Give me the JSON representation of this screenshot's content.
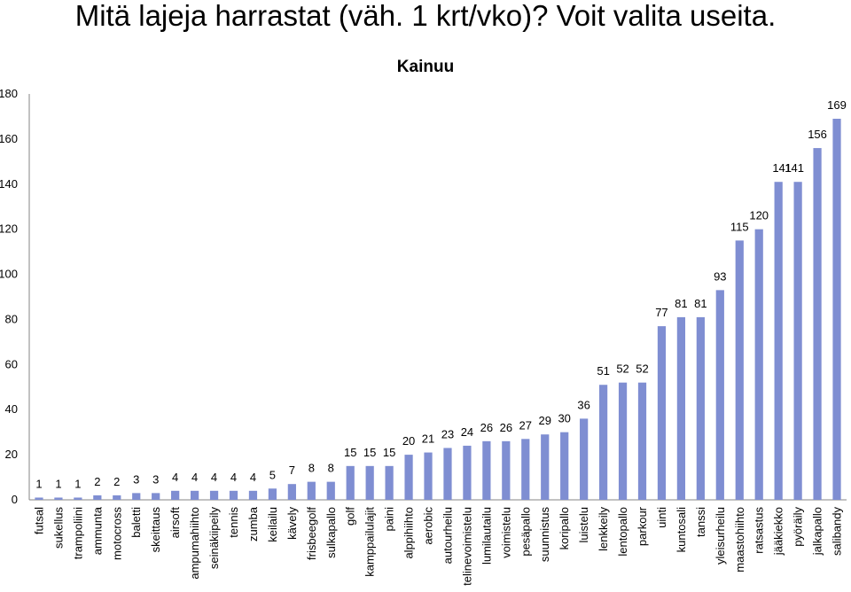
{
  "page_title": "Mitä lajeja harrastat (väh. 1 krt/vko)? Voit valita useita.",
  "chart_data": {
    "type": "bar",
    "title": "Kainuu",
    "xlabel": "",
    "ylabel": "",
    "ylim": [
      0,
      180
    ],
    "yticks": [
      0,
      20,
      40,
      60,
      80,
      100,
      120,
      140,
      160,
      180
    ],
    "grid": false,
    "legend": "none",
    "bar_color": "#7f8ed2",
    "categories": [
      "futsal",
      "sukellus",
      "trampoliini",
      "ammunta",
      "motocross",
      "baletti",
      "skeittaus",
      "airsoft",
      "ampumahiihto",
      "seinäkiipeily",
      "tennis",
      "zumba",
      "keilailu",
      "kävely",
      "frisbeegolf",
      "sulkapallo",
      "golf",
      "kamppailulajit",
      "paini",
      "alppihiihto",
      "aerobic",
      "autourheilu",
      "telinevoimistelu",
      "lumilautailu",
      "voimistelu",
      "pesäpallo",
      "suunnistus",
      "koripallo",
      "luistelu",
      "lenkkeily",
      "lentopallo",
      "parkour",
      "uinti",
      "kuntosali",
      "tanssi",
      "yleisurheilu",
      "maastohiihto",
      "ratsastus",
      "jääkiekko",
      "pyöräily",
      "jalkapallo",
      "salibandy"
    ],
    "values": [
      1,
      1,
      1,
      2,
      2,
      3,
      3,
      4,
      4,
      4,
      4,
      4,
      5,
      7,
      8,
      8,
      15,
      15,
      15,
      20,
      21,
      23,
      24,
      26,
      26,
      27,
      29,
      30,
      36,
      51,
      52,
      52,
      77,
      81,
      81,
      93,
      115,
      120,
      141,
      141,
      156,
      169
    ]
  }
}
